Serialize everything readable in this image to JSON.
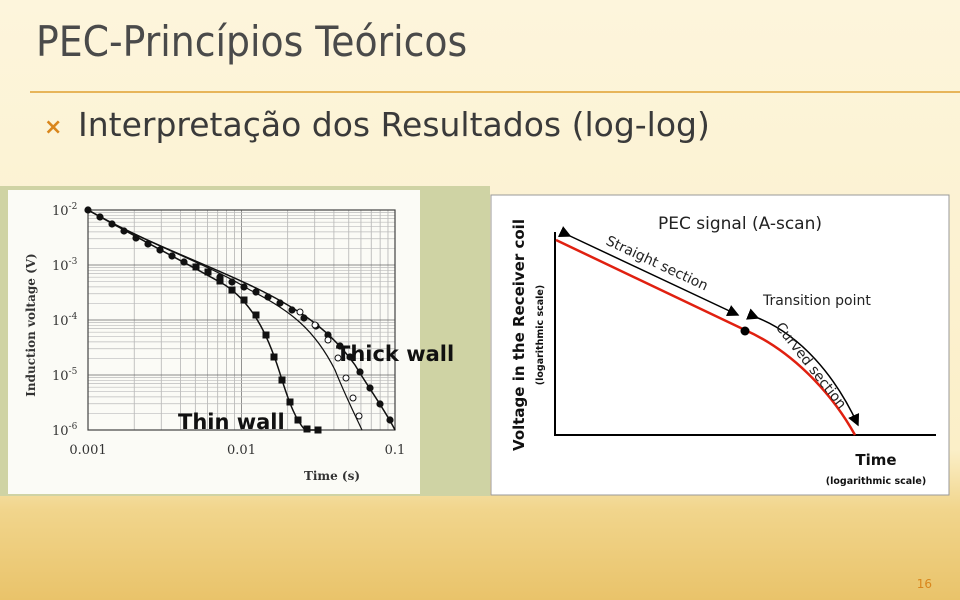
{
  "slide": {
    "title": "PEC-Princípios Teóricos",
    "bullet": "Interpretação dos Resultados (log-log)",
    "page_number": "16"
  },
  "left_figure": {
    "y_axis_label": "Induction voltage (V)",
    "x_axis_label": "Time (s)",
    "y_ticks": [
      {
        "base": "10",
        "exp": "-2"
      },
      {
        "base": "10",
        "exp": "-3"
      },
      {
        "base": "10",
        "exp": "-4"
      },
      {
        "base": "10",
        "exp": "-5"
      },
      {
        "base": "10",
        "exp": "-6"
      }
    ],
    "x_ticks": [
      "0.001",
      "0.01",
      "0.1"
    ],
    "annotations": [
      "Thick wall",
      "Thin wall"
    ]
  },
  "right_figure": {
    "title": "PEC signal (A-scan)",
    "y_axis_label": "Voltage in the Receiver coil",
    "y_axis_note": "(logarithmic scale)",
    "x_axis_label": "Time",
    "x_axis_note": "(logarithmic scale)",
    "annotations": [
      "Straight section",
      "Transition point",
      "Curved section"
    ]
  }
}
